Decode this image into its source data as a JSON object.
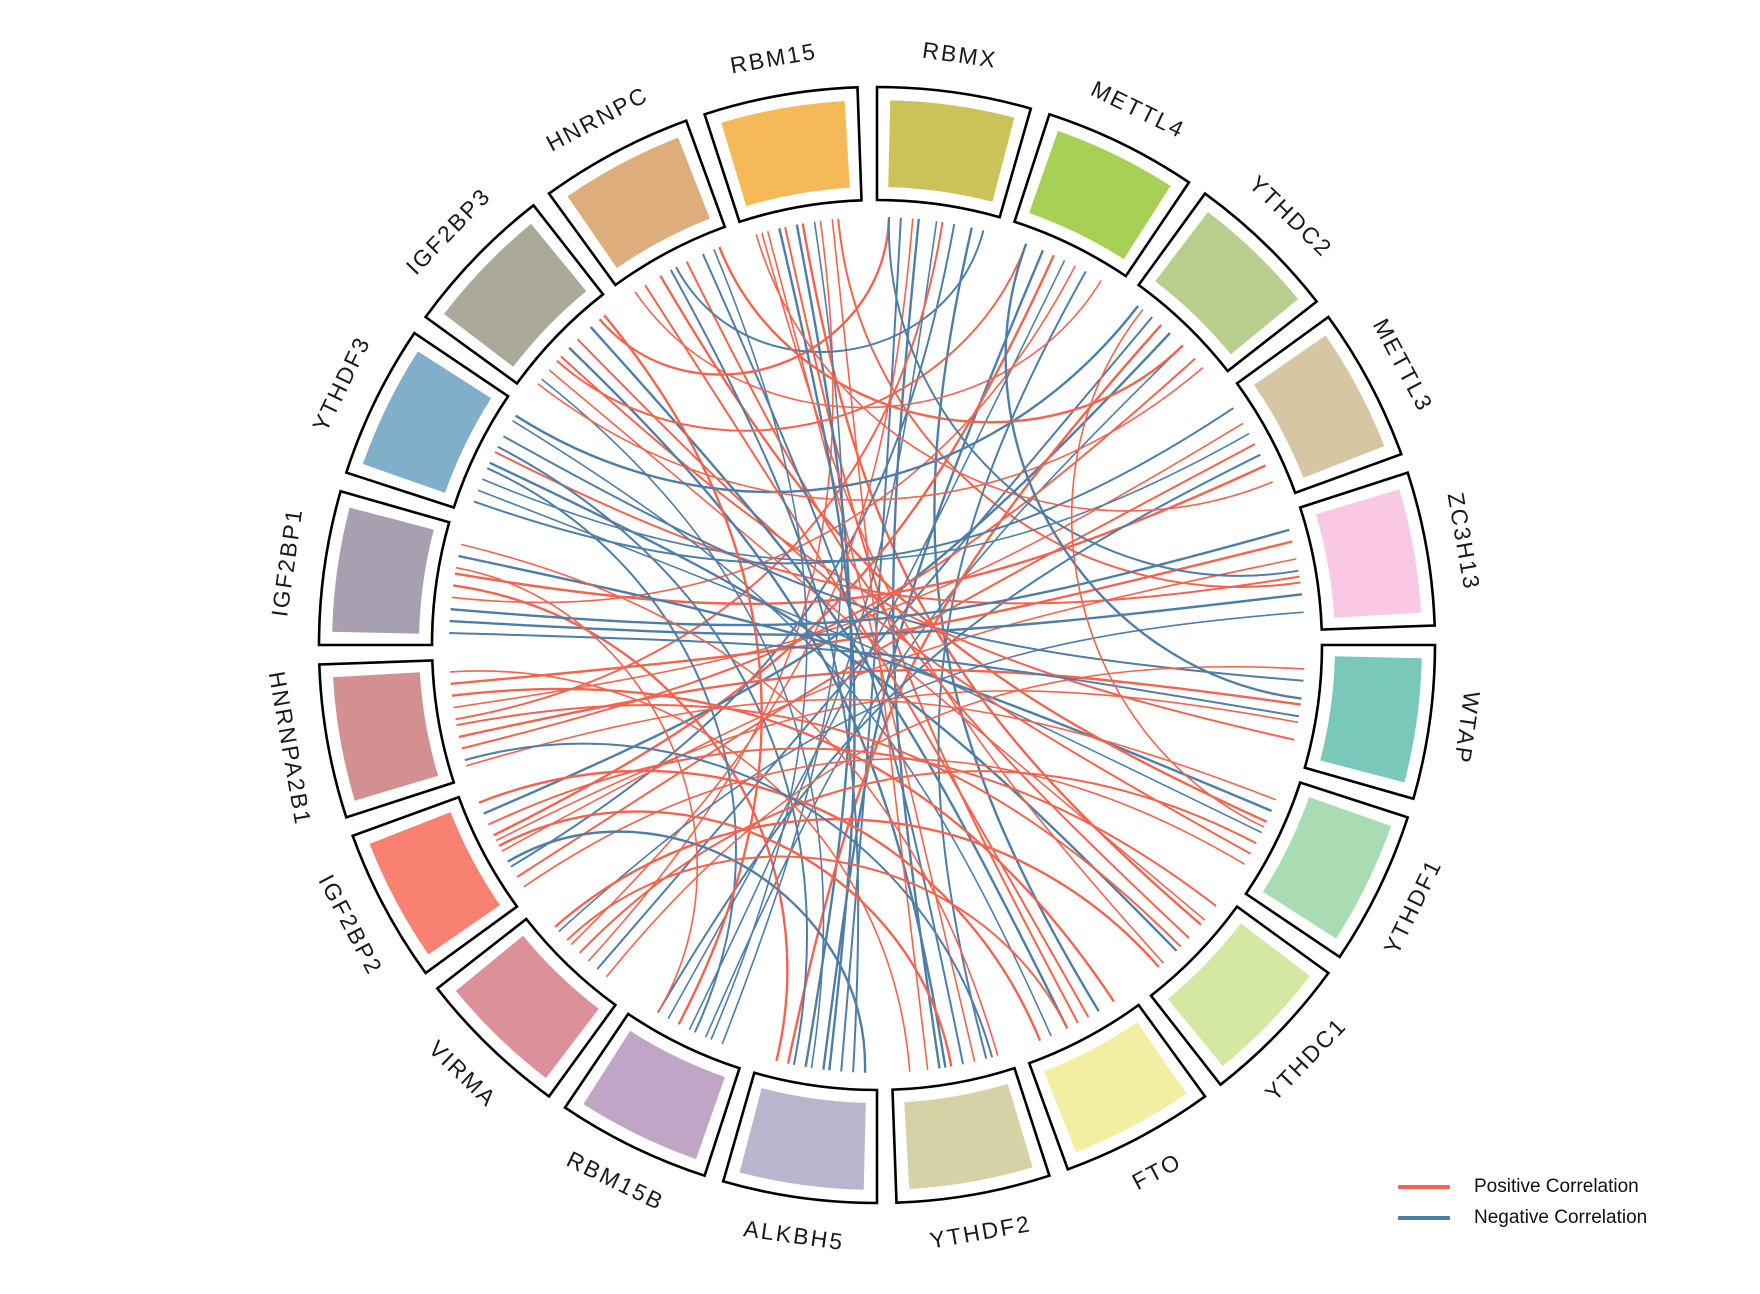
{
  "chart_data": {
    "type": "chord",
    "title": "",
    "description": "Circular chord (circos) diagram of pairwise correlations among 20 m6A regulator genes; red links = positive correlation, blue links = negative correlation",
    "genes": [
      {
        "name": "RBMX",
        "color": "#CCC25A"
      },
      {
        "name": "METTL4",
        "color": "#A6D155"
      },
      {
        "name": "YTHDC2",
        "color": "#B7CE8D"
      },
      {
        "name": "METTL3",
        "color": "#D7C6A4"
      },
      {
        "name": "ZC3H13",
        "color": "#F9C8E4"
      },
      {
        "name": "WTAP",
        "color": "#79C8B9"
      },
      {
        "name": "YTHDF1",
        "color": "#A9DCB2"
      },
      {
        "name": "YTHDC1",
        "color": "#D5E8A1"
      },
      {
        "name": "FTO",
        "color": "#F2EFA2"
      },
      {
        "name": "YTHDF2",
        "color": "#D6D2A6"
      },
      {
        "name": "ALKBH5",
        "color": "#BBB4CD"
      },
      {
        "name": "RBM15B",
        "color": "#C0A5C6"
      },
      {
        "name": "VIRMA",
        "color": "#DC9097"
      },
      {
        "name": "IGF2BP2",
        "color": "#F98171"
      },
      {
        "name": "HNRNPA2B1",
        "color": "#D29090"
      },
      {
        "name": "IGF2BP1",
        "color": "#A89FB1"
      },
      {
        "name": "YTHDF3",
        "color": "#81AFC9"
      },
      {
        "name": "IGF2BP3",
        "color": "#ACA99A"
      },
      {
        "name": "HNRNPC",
        "color": "#DDAE7C"
      },
      {
        "name": "RBM15",
        "color": "#F5B95A"
      }
    ],
    "links": [
      [
        "RBM15",
        0.2,
        "YTHDF2",
        0.3,
        "positive"
      ],
      [
        "RBM15",
        0.35,
        "FTO",
        0.5,
        "positive"
      ],
      [
        "RBM15",
        0.5,
        "YTHDC1",
        0.3,
        "positive"
      ],
      [
        "RBM15",
        0.65,
        "VIRMA",
        0.4,
        "positive"
      ],
      [
        "RBM15",
        0.8,
        "ZC3H13",
        0.6,
        "positive"
      ],
      [
        "RBM15",
        0.45,
        "ALKBH5",
        0.6,
        "negative"
      ],
      [
        "RBM15",
        0.6,
        "RBM15B",
        0.2,
        "negative"
      ],
      [
        "RBMX",
        0.2,
        "ALKBH5",
        0.3,
        "negative"
      ],
      [
        "RBMX",
        0.35,
        "YTHDF2",
        0.6,
        "negative"
      ],
      [
        "RBMX",
        0.5,
        "RBM15B",
        0.5,
        "negative"
      ],
      [
        "RBMX",
        0.65,
        "IGF2BP2",
        0.3,
        "negative"
      ],
      [
        "RBMX",
        0.8,
        "FTO",
        0.3,
        "negative"
      ],
      [
        "RBMX",
        0.3,
        "VIRMA",
        0.6,
        "positive"
      ],
      [
        "RBMX",
        0.55,
        "HNRNPA2B1",
        0.5,
        "positive"
      ],
      [
        "METTL4",
        0.3,
        "ALKBH5",
        0.45,
        "negative"
      ],
      [
        "METTL4",
        0.5,
        "RBM15B",
        0.7,
        "negative"
      ],
      [
        "METTL4",
        0.7,
        "YTHDF2",
        0.2,
        "negative"
      ],
      [
        "METTL4",
        0.4,
        "IGF2BP2",
        0.6,
        "positive"
      ],
      [
        "METTL4",
        0.6,
        "IGF2BP1",
        0.4,
        "positive"
      ],
      [
        "YTHDC2",
        0.25,
        "VIRMA",
        0.3,
        "negative"
      ],
      [
        "YTHDC2",
        0.45,
        "IGF2BP2",
        0.8,
        "negative"
      ],
      [
        "YTHDC2",
        0.6,
        "RBM15B",
        0.35,
        "negative"
      ],
      [
        "YTHDC2",
        0.75,
        "HNRNPA2B1",
        0.25,
        "positive"
      ],
      [
        "YTHDC2",
        0.35,
        "ALKBH5",
        0.75,
        "positive"
      ],
      [
        "METTL3",
        0.3,
        "HNRNPA2B1",
        0.6,
        "positive"
      ],
      [
        "METTL3",
        0.5,
        "IGF2BP2",
        0.2,
        "positive"
      ],
      [
        "METTL3",
        0.7,
        "IGF2BP1",
        0.6,
        "positive"
      ],
      [
        "METTL3",
        0.4,
        "YTHDF3",
        0.3,
        "negative"
      ],
      [
        "METTL3",
        0.6,
        "RBM15B",
        0.8,
        "negative"
      ],
      [
        "ZC3H13",
        0.25,
        "HNRNPA2B1",
        0.8,
        "positive"
      ],
      [
        "ZC3H13",
        0.4,
        "IGF2BP2",
        0.45,
        "positive"
      ],
      [
        "ZC3H13",
        0.55,
        "YTHDF3",
        0.55,
        "positive"
      ],
      [
        "ZC3H13",
        0.7,
        "IGF2BP1",
        0.2,
        "negative"
      ],
      [
        "ZC3H13",
        0.85,
        "VIRMA",
        0.75,
        "negative"
      ],
      [
        "WTAP",
        0.3,
        "YTHDF3",
        0.7,
        "negative"
      ],
      [
        "WTAP",
        0.5,
        "HNRNPA2B1",
        0.35,
        "positive"
      ],
      [
        "WTAP",
        0.65,
        "IGF2BP2",
        0.55,
        "positive"
      ],
      [
        "WTAP",
        0.8,
        "IGF2BP3",
        0.4,
        "positive"
      ],
      [
        "YTHDF1",
        0.3,
        "IGF2BP1",
        0.75,
        "negative"
      ],
      [
        "YTHDF1",
        0.5,
        "YTHDF3",
        0.2,
        "negative"
      ],
      [
        "YTHDF1",
        0.7,
        "IGF2BP3",
        0.6,
        "positive"
      ],
      [
        "YTHDF1",
        0.4,
        "HNRNPC",
        0.35,
        "positive"
      ],
      [
        "YTHDC1",
        0.25,
        "IGF2BP3",
        0.25,
        "positive"
      ],
      [
        "YTHDC1",
        0.45,
        "HNRNPC",
        0.6,
        "positive"
      ],
      [
        "YTHDC1",
        0.6,
        "YTHDF3",
        0.45,
        "negative"
      ],
      [
        "YTHDC1",
        0.75,
        "RBM15",
        0.15,
        "positive"
      ],
      [
        "FTO",
        0.4,
        "HNRNPC",
        0.2,
        "positive"
      ],
      [
        "FTO",
        0.6,
        "IGF2BP3",
        0.75,
        "negative"
      ],
      [
        "FTO",
        0.75,
        "YTHDF3",
        0.85,
        "negative"
      ],
      [
        "YTHDF2",
        0.4,
        "HNRNPC",
        0.75,
        "negative"
      ],
      [
        "YTHDF2",
        0.55,
        "IGF2BP3",
        0.5,
        "negative"
      ],
      [
        "YTHDF2",
        0.7,
        "RBM15",
        0.75,
        "positive"
      ],
      [
        "ALKBH5",
        0.2,
        "HNRNPC",
        0.45,
        "negative"
      ],
      [
        "ALKBH5",
        0.4,
        "RBM15",
        0.3,
        "negative"
      ],
      [
        "ALKBH5",
        0.55,
        "IGF2BP3",
        0.15,
        "negative"
      ],
      [
        "ALKBH5",
        0.7,
        "YTHDF3",
        0.6,
        "negative"
      ],
      [
        "ALKBH5",
        0.85,
        "IGF2BP1",
        0.5,
        "positive"
      ],
      [
        "RBM15B",
        0.3,
        "HNRNPC",
        0.85,
        "negative"
      ],
      [
        "RBM15B",
        0.45,
        "YTHDF3",
        0.4,
        "negative"
      ],
      [
        "RBM15B",
        0.6,
        "IGF2BP3",
        0.9,
        "positive"
      ],
      [
        "VIRMA",
        0.2,
        "WTAP",
        0.2,
        "positive"
      ],
      [
        "VIRMA",
        0.5,
        "YTHDF1",
        0.6,
        "positive"
      ],
      [
        "VIRMA",
        0.8,
        "YTHDC1",
        0.8,
        "positive"
      ],
      [
        "IGF2BP2",
        0.1,
        "YTHDF1",
        0.8,
        "positive"
      ],
      [
        "IGF2BP2",
        0.7,
        "YTHDC1",
        0.1,
        "positive"
      ],
      [
        "IGF2BP2",
        0.9,
        "FTO",
        0.85,
        "positive"
      ],
      [
        "HNRNPA2B1",
        0.1,
        "YTHDF1",
        0.2,
        "positive"
      ],
      [
        "HNRNPA2B1",
        0.45,
        "YTHDC1",
        0.55,
        "positive"
      ],
      [
        "HNRNPA2B1",
        0.7,
        "FTO",
        0.15,
        "positive"
      ],
      [
        "HNRNPA2B1",
        0.9,
        "YTHDF2",
        0.85,
        "positive"
      ],
      [
        "IGF2BP1",
        0.1,
        "WTAP",
        0.6,
        "negative"
      ],
      [
        "IGF2BP1",
        0.3,
        "ZC3H13",
        0.15,
        "negative"
      ],
      [
        "IGF2BP1",
        0.85,
        "YTHDF2",
        0.1,
        "positive"
      ],
      [
        "YTHDF3",
        0.1,
        "METTL3",
        0.15,
        "negative"
      ],
      [
        "YTHDF3",
        0.9,
        "YTHDC2",
        0.1,
        "negative"
      ],
      [
        "IGF2BP3",
        0.1,
        "YTHDC2",
        0.85,
        "positive"
      ],
      [
        "IGF2BP3",
        0.35,
        "METTL4",
        0.15,
        "positive"
      ],
      [
        "IGF2BP3",
        0.85,
        "RBMX",
        0.1,
        "positive"
      ],
      [
        "HNRNPC",
        0.1,
        "METTL4",
        0.85,
        "positive"
      ],
      [
        "HNRNPC",
        0.5,
        "RBMX",
        0.9,
        "negative"
      ],
      [
        "HNRNPC",
        0.9,
        "YTHDC2",
        0.6,
        "positive"
      ],
      [
        "RBM15",
        0.1,
        "METTL3",
        0.85,
        "positive"
      ],
      [
        "RBMX",
        0.1,
        "ZC3H13",
        0.5,
        "negative"
      ],
      [
        "METTL4",
        0.15,
        "WTAP",
        0.45,
        "negative"
      ],
      [
        "YTHDC2",
        0.15,
        "YTHDF1",
        0.45,
        "positive"
      ],
      [
        "YTHDF2",
        0.15,
        "HNRNPA2B1",
        0.15,
        "negative"
      ],
      [
        "ALKBH5",
        0.1,
        "IGF2BP2",
        0.35,
        "negative"
      ],
      [
        "RBM15B",
        0.8,
        "IGF2BP1",
        0.65,
        "positive"
      ],
      [
        "VIRMA",
        0.65,
        "FTO",
        0.6,
        "positive"
      ],
      [
        "IGF2BP2",
        0.5,
        "YTHDF2",
        0.5,
        "positive"
      ]
    ],
    "legend": [
      {
        "label": "Positive Correlation",
        "color": "#F4634E"
      },
      {
        "label": "Negative Correlation",
        "color": "#4E7EA7"
      }
    ],
    "layout": {
      "legend_position": "bottom-right",
      "sector_border_color": "#000000",
      "background": "#ffffff"
    }
  }
}
